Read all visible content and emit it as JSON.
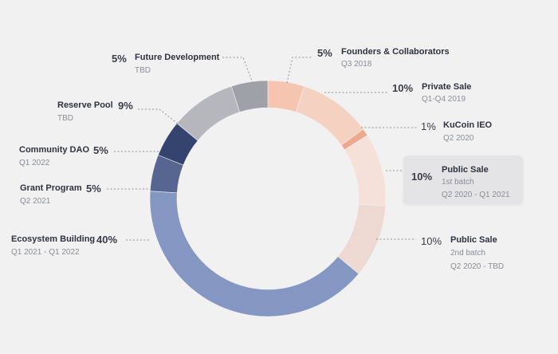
{
  "chart_data": {
    "type": "pie",
    "title": "",
    "slices": [
      {
        "name": "Founders & Collaborators",
        "percent": "5%",
        "value": 5,
        "period": "Q3 2018",
        "color": "#f5c5b0"
      },
      {
        "name": "Private Sale",
        "percent": "10%",
        "value": 10,
        "period": "Q1-Q4 2019",
        "color": "#f5d1c2"
      },
      {
        "name": "KuCoin IEO",
        "percent": "1%",
        "value": 1,
        "period": "Q2 2020",
        "color": "#eda98d"
      },
      {
        "name": "Public Sale",
        "line2": "1st batch",
        "percent": "10%",
        "value": 10,
        "period": "Q2 2020 - Q1 2021",
        "color": "#f6e1d8"
      },
      {
        "name": "Public Sale",
        "line2": "2nd batch",
        "percent": "10%",
        "value": 10,
        "period": "Q2 2020 - TBD",
        "color": "#edd9d1"
      },
      {
        "name": "Ecosystem Building",
        "percent": "40%",
        "value": 40,
        "period": "Q1 2021 - Q1 2022",
        "color": "#8496c2"
      },
      {
        "name": "Grant Program",
        "percent": "5%",
        "value": 5,
        "period": "Q2 2021",
        "color": "#566690"
      },
      {
        "name": "Community DAO",
        "percent": "5%",
        "value": 5,
        "period": "Q1 2022",
        "color": "#35446e"
      },
      {
        "name": "Reserve Pool",
        "percent": "9%",
        "value": 9,
        "period": "TBD",
        "color": "#b5b7bd"
      },
      {
        "name": "Future Development",
        "percent": "5%",
        "value": 5,
        "period": "TBD",
        "color": "#9fa1a8"
      }
    ]
  }
}
